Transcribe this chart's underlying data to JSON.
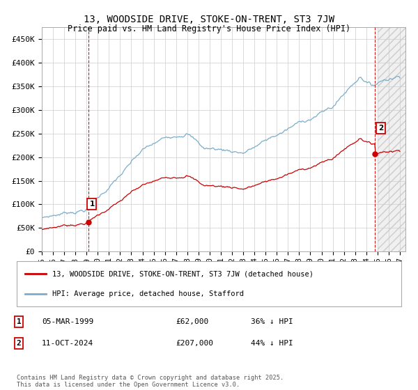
{
  "title": "13, WOODSIDE DRIVE, STOKE-ON-TRENT, ST3 7JW",
  "subtitle": "Price paid vs. HM Land Registry's House Price Index (HPI)",
  "ylim": [
    0,
    475000
  ],
  "yticks": [
    0,
    50000,
    100000,
    150000,
    200000,
    250000,
    300000,
    350000,
    400000,
    450000
  ],
  "ytick_labels": [
    "£0",
    "£50K",
    "£100K",
    "£150K",
    "£200K",
    "£250K",
    "£300K",
    "£350K",
    "£400K",
    "£450K"
  ],
  "xlim_start": 1995.0,
  "xlim_end": 2027.5,
  "transaction1_date": 1999.18,
  "transaction1_price": 62000,
  "transaction2_date": 2024.78,
  "transaction2_price": 207000,
  "red_line_color": "#cc0000",
  "blue_line_color": "#7aadcc",
  "vline_color": "#cc0000",
  "dot_color": "#cc0000",
  "legend_label_red": "13, WOODSIDE DRIVE, STOKE-ON-TRENT, ST3 7JW (detached house)",
  "legend_label_blue": "HPI: Average price, detached house, Stafford",
  "table_row1": [
    "1",
    "05-MAR-1999",
    "£62,000",
    "36% ↓ HPI"
  ],
  "table_row2": [
    "2",
    "11-OCT-2024",
    "£207,000",
    "44% ↓ HPI"
  ],
  "footer": "Contains HM Land Registry data © Crown copyright and database right 2025.\nThis data is licensed under the Open Government Licence v3.0.",
  "background_color": "#ffffff",
  "grid_color": "#cccccc",
  "hatch_color": "#e8e8e8"
}
